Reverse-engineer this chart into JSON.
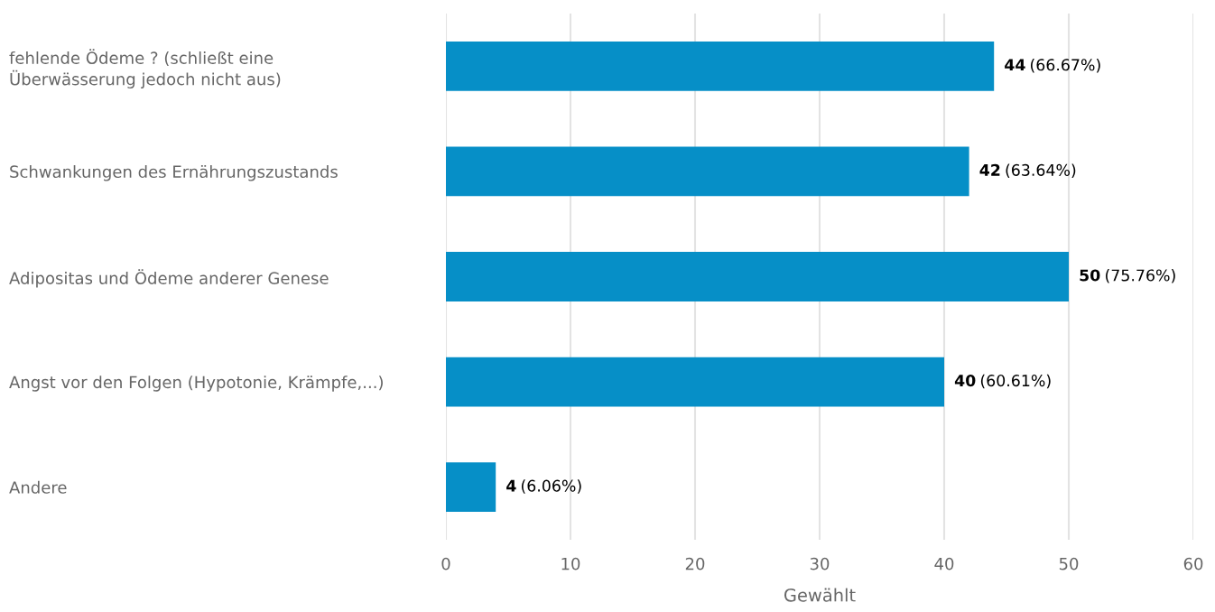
{
  "chart_data": {
    "type": "bar",
    "orientation": "horizontal",
    "xlabel": "Gewählt",
    "categories": [
      "fehlende Ödeme ? (schließt eine\nÜberwässerung jedoch nicht aus)",
      "Schwankungen des Ernährungszustands",
      "Adipositas und Ödeme anderer Genese",
      "Angst vor den Folgen (Hypotonie, Krämpfe,...)",
      "Andere"
    ],
    "values": [
      44,
      42,
      50,
      40,
      4
    ],
    "value_labels": [
      "44 (66.67%)",
      "42 (63.64%)",
      "50 (75.76%)",
      "40 (60.61%)",
      "4 (6.06%)"
    ],
    "color": "#068fc7",
    "xlim": [
      0,
      60
    ],
    "xticks": [
      0,
      10,
      20,
      30,
      40,
      50,
      60
    ],
    "grid": "x"
  }
}
